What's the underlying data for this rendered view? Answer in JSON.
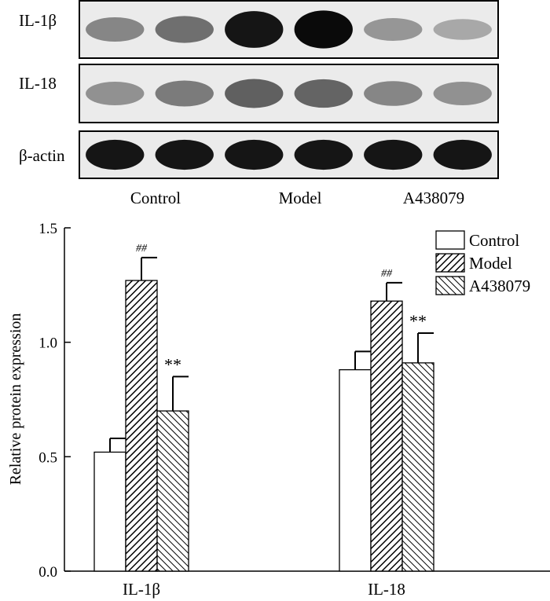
{
  "blot": {
    "rows": [
      {
        "label": "IL-1β",
        "intensity": [
          0.45,
          0.55,
          0.95,
          1.0,
          0.38,
          0.3
        ]
      },
      {
        "label": "IL-18",
        "intensity": [
          0.4,
          0.5,
          0.62,
          0.6,
          0.45,
          0.4
        ]
      },
      {
        "label": "β-actin",
        "intensity": [
          0.95,
          0.95,
          0.95,
          0.95,
          0.95,
          0.95
        ]
      }
    ],
    "groups": [
      "Control",
      "Model",
      "A438079"
    ]
  },
  "chart_data": {
    "type": "bar",
    "categories": [
      "IL-1β",
      "IL-18"
    ],
    "series": [
      {
        "name": "Control",
        "values": [
          0.52,
          0.88
        ],
        "errors": [
          0.06,
          0.08
        ],
        "annotations": [
          "",
          ""
        ],
        "fill": "white"
      },
      {
        "name": "Model",
        "values": [
          1.27,
          1.18
        ],
        "errors": [
          0.1,
          0.08
        ],
        "annotations": [
          "##",
          "##"
        ],
        "fill": "hatch-forward"
      },
      {
        "name": "A438079",
        "values": [
          0.7,
          0.91
        ],
        "errors": [
          0.15,
          0.13
        ],
        "annotations": [
          "**",
          "**"
        ],
        "fill": "hatch-backward"
      }
    ],
    "ylabel": "Relative protein expression",
    "xlabel": "",
    "ylim": [
      0.0,
      1.5
    ],
    "yticks": [
      "0.0",
      "0.5",
      "1.0",
      "1.5"
    ],
    "legend": "top-right",
    "grid": false
  }
}
